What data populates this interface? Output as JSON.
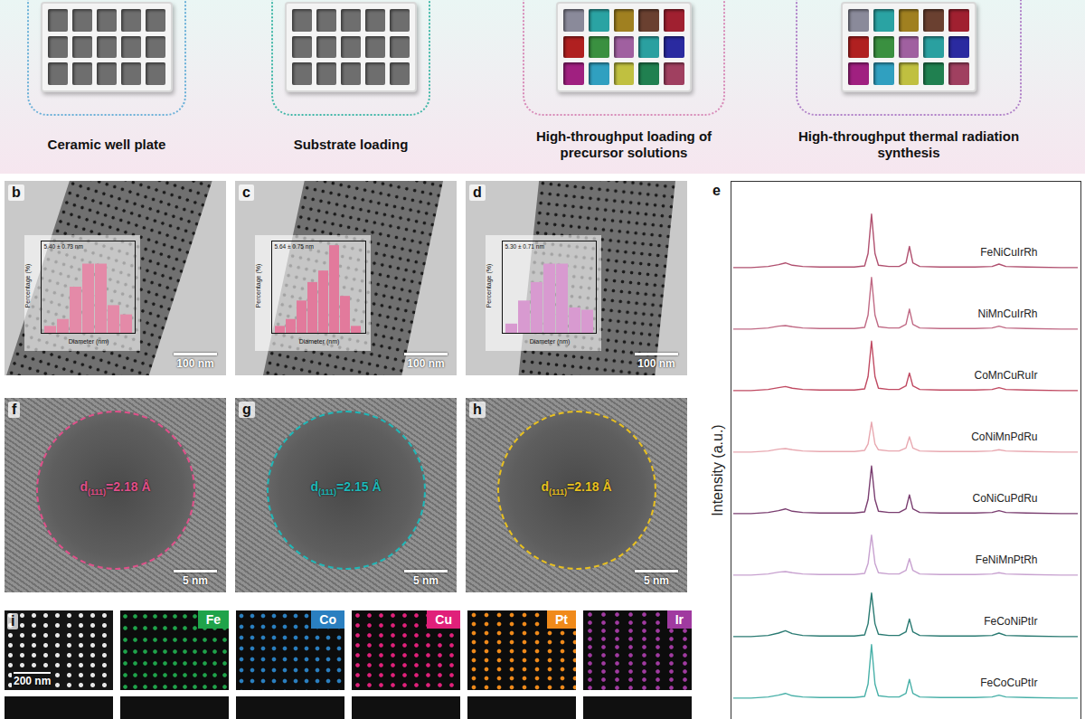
{
  "schematic": {
    "steps": [
      "Ceramic well plate",
      "Substrate loading",
      "High-throughput loading of precursor solutions",
      "High-throughput thermal radiation synthesis"
    ]
  },
  "chart_data": [
    {
      "panel": "b",
      "type": "bar",
      "annotation": "5.40 ± 0.73 nm",
      "x_label": "Diameter (nm)",
      "y_label": "Percentage (%)",
      "scale_bar": "100 nm",
      "categories": [
        null,
        null,
        null,
        null,
        null,
        null,
        null
      ],
      "values": [
        3,
        6,
        20,
        30,
        30,
        12,
        8
      ],
      "color": "#e48aa8",
      "ylim": [
        0,
        40
      ],
      "tick_labels": false
    },
    {
      "panel": "c",
      "type": "bar",
      "annotation": "5.64 ± 0.75 nm",
      "x_label": "Diameter (nm)",
      "y_label": "Percentage (%)",
      "scale_bar": "100 nm",
      "categories": [
        null,
        null,
        null,
        null,
        null,
        null,
        null,
        null
      ],
      "values": [
        3,
        6,
        14,
        22,
        27,
        38,
        16,
        3
      ],
      "color": "#e27a9c",
      "ylim": [
        0,
        40
      ],
      "tick_labels": false
    },
    {
      "panel": "d",
      "type": "bar",
      "annotation": "5.30 ± 0.71 nm",
      "x_label": "Diameter (nm)",
      "y_label": "Percentage (%)",
      "scale_bar": "100 nm",
      "categories": [
        null,
        null,
        null,
        null,
        null,
        null,
        null
      ],
      "values": [
        4,
        14,
        22,
        30,
        30,
        11,
        10
      ],
      "color": "#d89ad0",
      "ylim": [
        0,
        40
      ],
      "tick_labels": false
    },
    {
      "panel": "e",
      "type": "line",
      "y_label": "Intensity (a.u.)",
      "tick_labels": false,
      "xlim": [
        0,
        100
      ],
      "ylim": [
        0,
        100
      ],
      "x": [
        0,
        5,
        10,
        13,
        15,
        17,
        20,
        25,
        30,
        35,
        38,
        39,
        40,
        41,
        42,
        45,
        48,
        50,
        51,
        52,
        54,
        60,
        70,
        75,
        77,
        79,
        85,
        95,
        100
      ],
      "series": [
        {
          "name": "FeNiCuIrRh",
          "color": "#b0506f",
          "values": [
            4,
            4,
            6,
            9,
            12,
            8,
            6,
            5,
            5,
            5,
            7,
            28,
            95,
            28,
            8,
            6,
            6,
            12,
            40,
            12,
            6,
            5,
            5,
            6,
            10,
            6,
            5,
            4,
            4
          ]
        },
        {
          "name": "NiMnCuIrRh",
          "color": "#c06a85",
          "values": [
            4,
            4,
            6,
            9,
            10,
            8,
            6,
            5,
            5,
            5,
            7,
            28,
            92,
            28,
            8,
            6,
            6,
            12,
            38,
            12,
            6,
            5,
            5,
            6,
            9,
            6,
            5,
            4,
            4
          ]
        },
        {
          "name": "CoMnCuRuIr",
          "color": "#c04a62",
          "values": [
            4,
            4,
            6,
            9,
            11,
            8,
            6,
            5,
            5,
            5,
            7,
            28,
            88,
            28,
            8,
            6,
            6,
            12,
            34,
            12,
            6,
            5,
            5,
            6,
            9,
            6,
            5,
            4,
            4
          ]
        },
        {
          "name": "CoNiMnPdRu",
          "color": "#e8a8b0",
          "values": [
            4,
            4,
            6,
            9,
            10,
            8,
            6,
            5,
            5,
            5,
            7,
            18,
            55,
            18,
            8,
            6,
            6,
            11,
            30,
            11,
            6,
            5,
            5,
            6,
            8,
            6,
            5,
            4,
            4
          ]
        },
        {
          "name": "CoNiCuPdRu",
          "color": "#7a3e70",
          "values": [
            4,
            4,
            6,
            9,
            12,
            8,
            6,
            5,
            5,
            5,
            7,
            28,
            85,
            28,
            8,
            6,
            6,
            12,
            36,
            12,
            6,
            5,
            5,
            6,
            9,
            6,
            5,
            4,
            4
          ]
        },
        {
          "name": "FeNiMnPtRh",
          "color": "#c8a2d0",
          "values": [
            4,
            4,
            6,
            9,
            10,
            8,
            6,
            5,
            5,
            5,
            7,
            24,
            72,
            24,
            8,
            6,
            6,
            12,
            32,
            12,
            6,
            5,
            5,
            6,
            8,
            6,
            5,
            4,
            4
          ]
        },
        {
          "name": "FeCoNiPtIr",
          "color": "#2a7a72",
          "values": [
            4,
            4,
            6,
            10,
            14,
            9,
            6,
            5,
            5,
            5,
            7,
            26,
            78,
            26,
            8,
            6,
            6,
            12,
            34,
            12,
            6,
            5,
            5,
            6,
            10,
            6,
            5,
            4,
            4
          ]
        },
        {
          "name": "FeCoCuPtIr",
          "color": "#48b0a8",
          "values": [
            4,
            4,
            6,
            9,
            12,
            8,
            6,
            5,
            5,
            5,
            7,
            28,
            95,
            28,
            8,
            6,
            6,
            12,
            36,
            12,
            6,
            5,
            5,
            6,
            9,
            6,
            5,
            4,
            4
          ]
        }
      ]
    }
  ],
  "hrtem": [
    {
      "panel": "f",
      "symbol": "d",
      "subscript": "(111)",
      "value": "=2.18 Å",
      "color": "#e0508a",
      "scale_bar": "5 nm"
    },
    {
      "panel": "g",
      "symbol": "d",
      "subscript": "(111)",
      "value": "=2.15 Å",
      "color": "#1fb8b8",
      "scale_bar": "5 nm"
    },
    {
      "panel": "h",
      "symbol": "d",
      "subscript": "(111)",
      "value": "=2.18 Å",
      "color": "#e8c020",
      "scale_bar": "5 nm"
    }
  ],
  "eds": {
    "panel": "i",
    "scale_bar": "200 nm",
    "maps": [
      {
        "element": "Fe",
        "color": "#1fa34a"
      },
      {
        "element": "Co",
        "color": "#2a7fc0"
      },
      {
        "element": "Cu",
        "color": "#e0207a"
      },
      {
        "element": "Pt",
        "color": "#f08a1a"
      },
      {
        "element": "Ir",
        "color": "#a03aa0"
      }
    ]
  }
}
